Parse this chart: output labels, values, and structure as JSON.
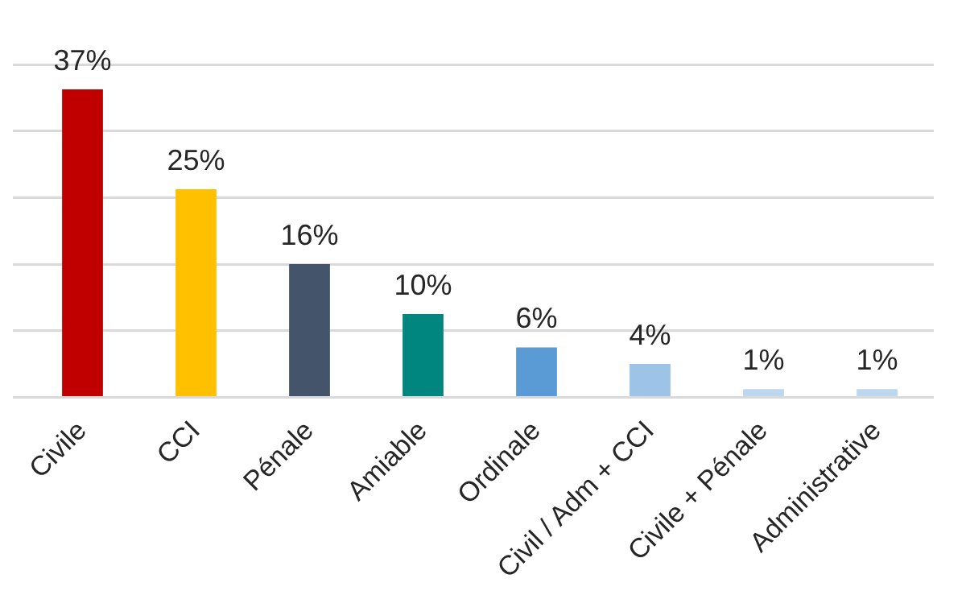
{
  "chart_data": {
    "type": "bar",
    "categories": [
      "Civile",
      "CCI",
      "Pénale",
      "Amiable",
      "Ordinale",
      "Civil / Adm + CCI",
      "Civile + Pénale",
      "Administrative"
    ],
    "values": [
      37,
      25,
      16,
      10,
      6,
      4,
      1,
      1
    ],
    "value_labels": [
      "37%",
      "25%",
      "16%",
      "10%",
      "6%",
      "4%",
      "1%",
      "1%"
    ],
    "colors": [
      "#c00000",
      "#ffc000",
      "#44546a",
      "#00857f",
      "#5b9bd5",
      "#9dc3e6",
      "#bdd7ee",
      "#bdd7ee"
    ],
    "ylim": [
      0,
      40
    ],
    "yticks": [
      {
        "value": 0,
        "label": null
      },
      {
        "value": 8,
        "label": null
      },
      {
        "value": 16,
        "label": null
      },
      {
        "value": 24,
        "label": null
      },
      {
        "value": 32,
        "label": null
      },
      {
        "value": 40,
        "label": null
      }
    ],
    "grid": "y",
    "tick_labels": "x",
    "legend": false
  }
}
